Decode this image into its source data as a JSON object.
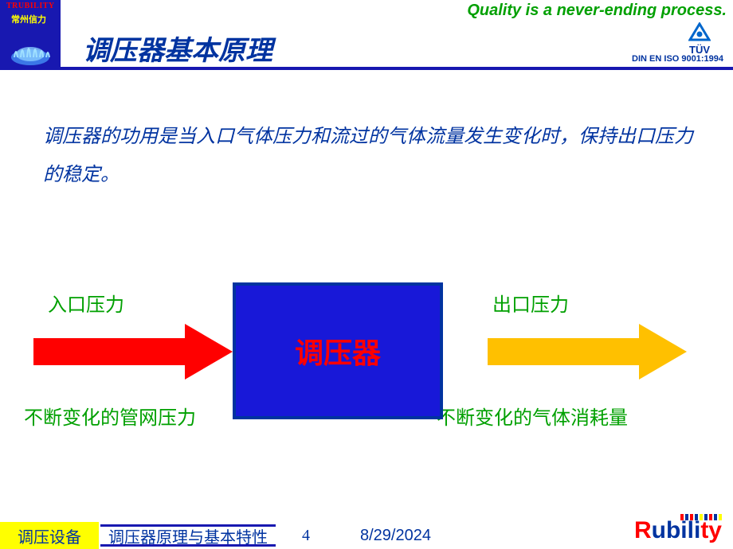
{
  "header": {
    "logo_top": "TRUBILITY",
    "logo_sub": "常州信力",
    "tagline": "Quality is a never-ending process.",
    "tuv_label": "TÜV",
    "iso_text": "DIN EN ISO 9001:1994",
    "tuv_triangle_color": "#0066cc"
  },
  "slide": {
    "title": "调压器基本原理",
    "body": "调压器的功用是当入口气体压力和流过的气体流量发生变化时，保持出口压力的稳定。"
  },
  "diagram": {
    "inlet_label": "入口压力",
    "inlet_sub": "不断变化的管网压力",
    "outlet_label": "出口压力",
    "outlet_sub": "不断变化的气体消耗量",
    "center_label": "调压器",
    "arrow_in_color": "#ff0000",
    "arrow_out_color": "#ffc000",
    "box_bg": "#1818d8",
    "box_border": "#0033a0",
    "label_color": "#00a000",
    "text_fontsize": 24
  },
  "footer": {
    "block1": "调压设备",
    "block2": "调压器原理与基本特性",
    "page": "4",
    "date": "8/29/2024",
    "logo_text": "Rubility",
    "bar_colors": [
      "#ff0000",
      "#0033a0",
      "#ff0000",
      "#0033a0",
      "#ffff00",
      "#0033a0",
      "#ff0000",
      "#0033a0",
      "#ffff00"
    ]
  },
  "colors": {
    "primary_blue": "#1818b0",
    "dark_blue": "#0033a0",
    "green": "#00a000",
    "red": "#ff0000",
    "yellow": "#ffff00",
    "white": "#ffffff"
  }
}
